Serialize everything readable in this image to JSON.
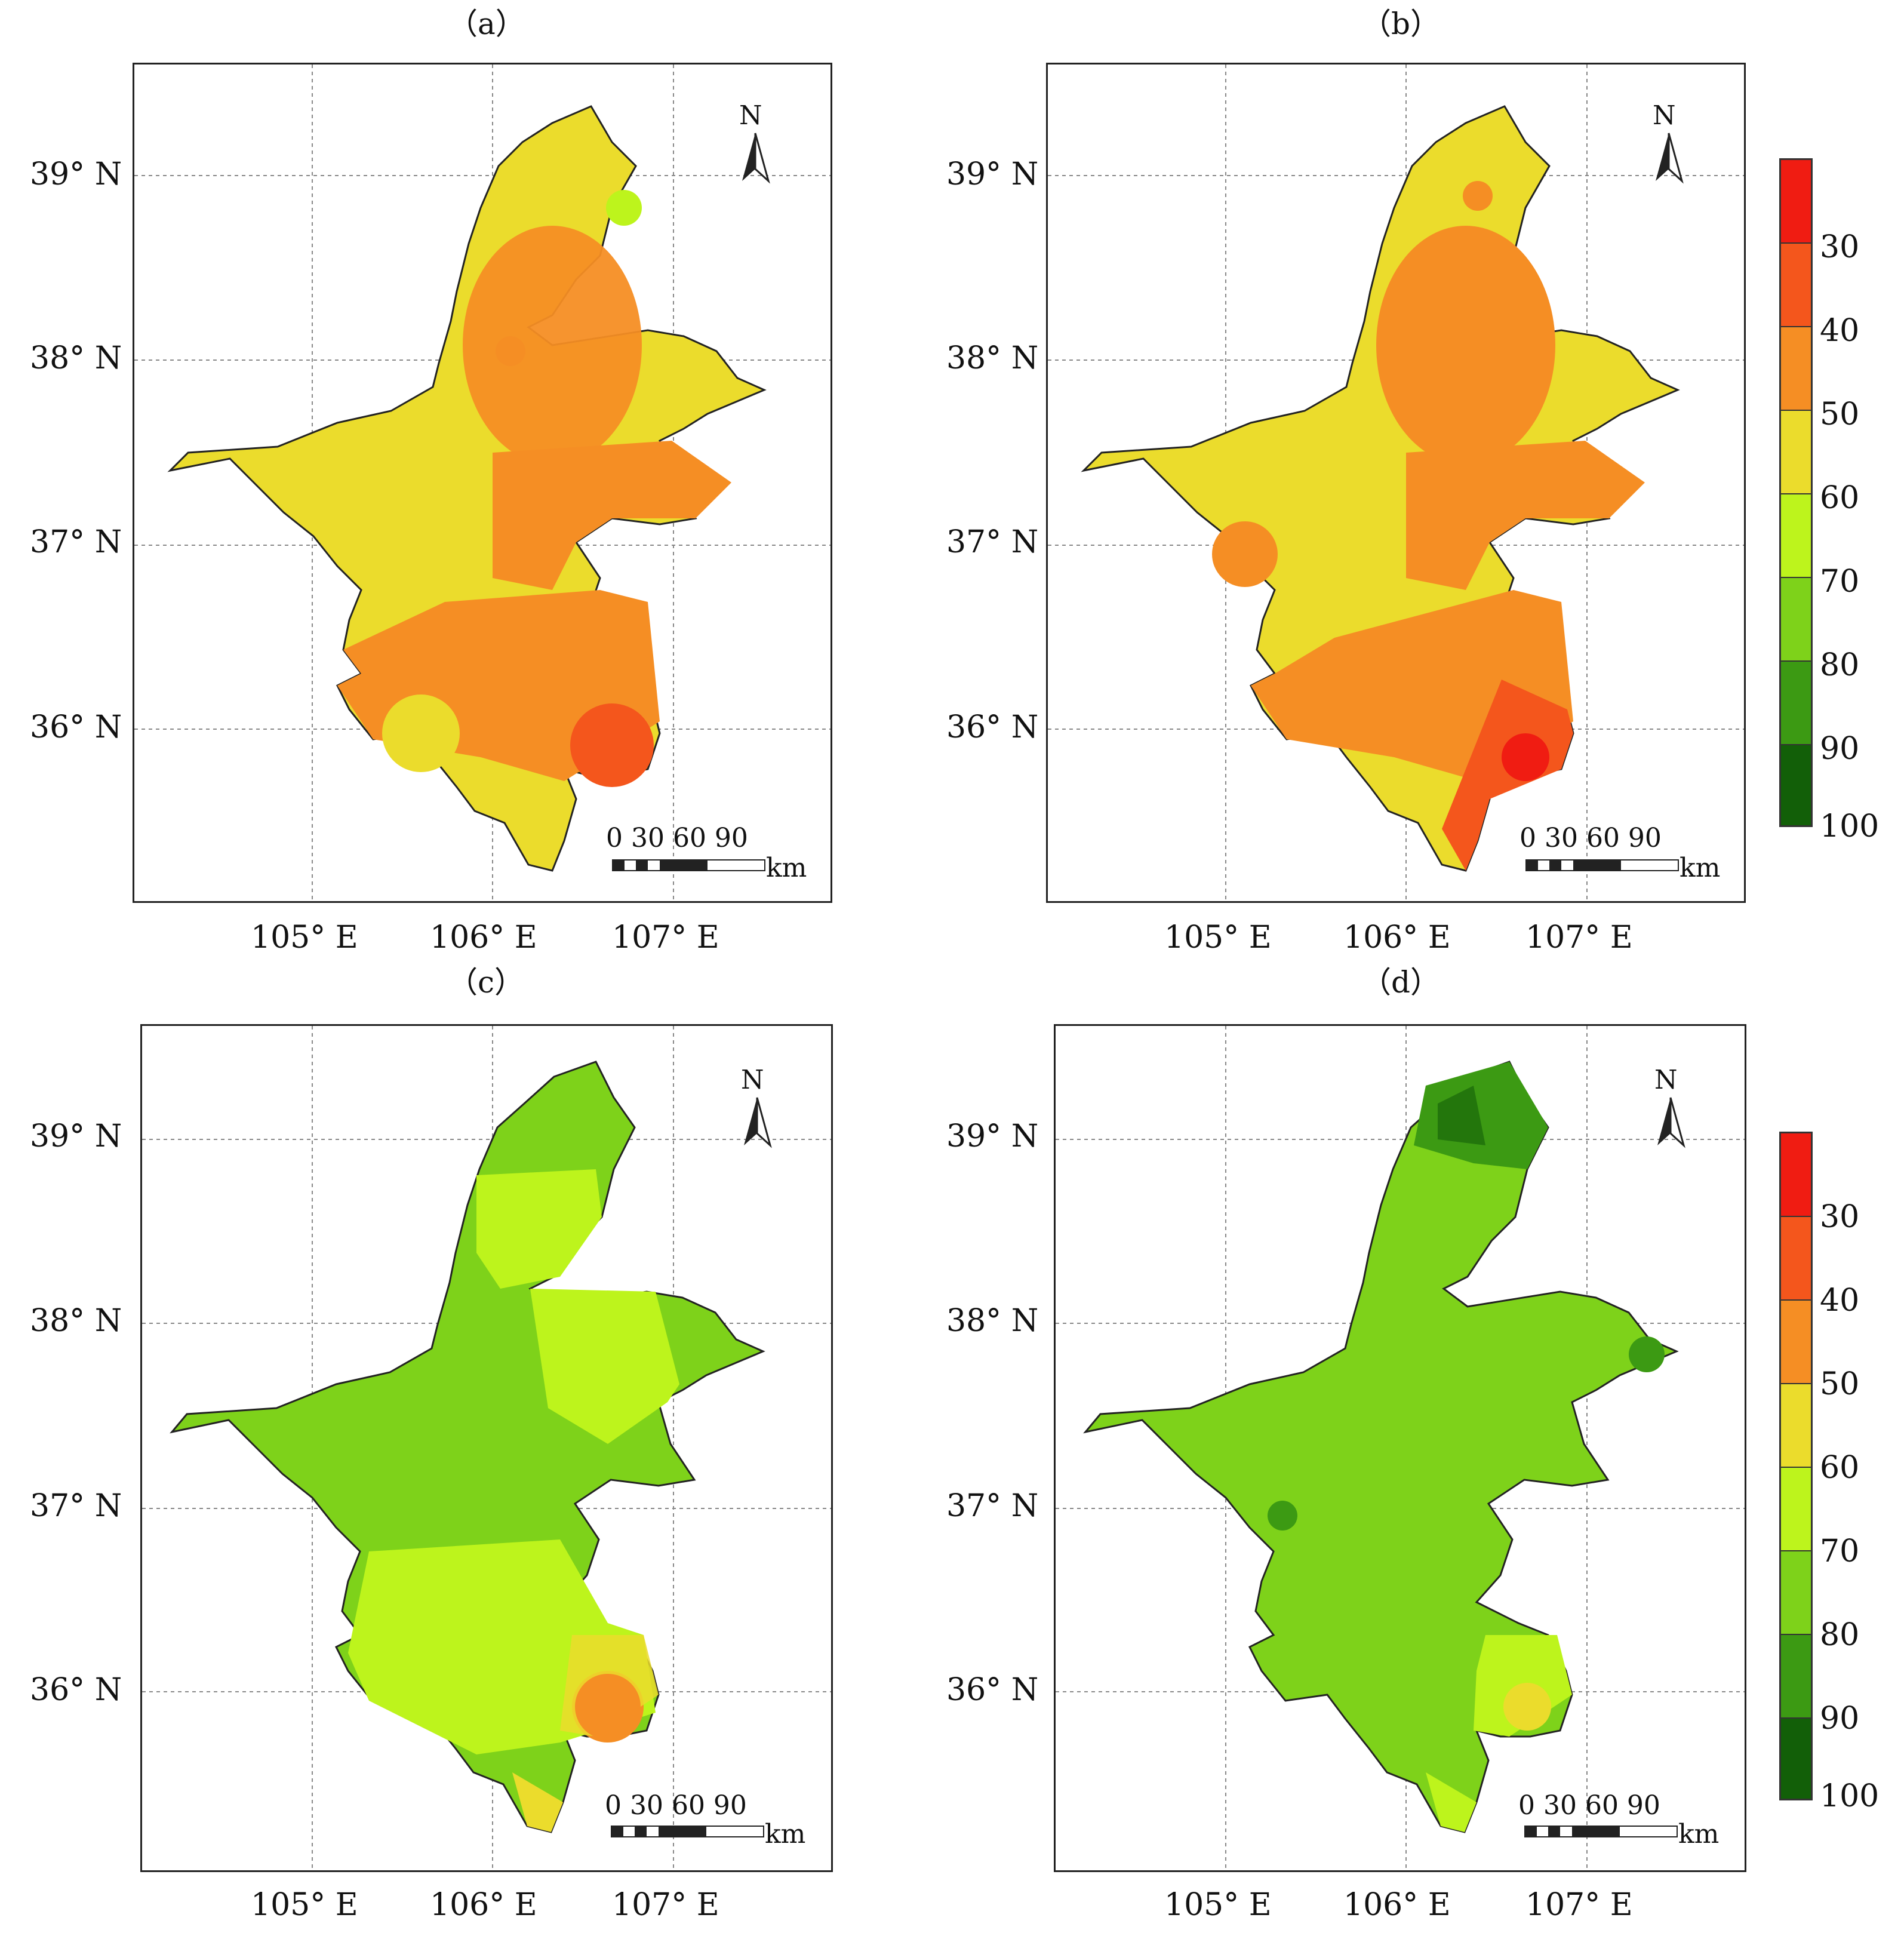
{
  "panels": [
    {
      "label": "（a）",
      "north": "N",
      "scale_ticks": "0  30  60  90",
      "scale_unit": "km"
    },
    {
      "label": "（b）",
      "north": "N",
      "scale_ticks": "0  30  60  90",
      "scale_unit": "km"
    },
    {
      "label": "（c）",
      "north": "N",
      "scale_ticks": "0  30  60  90",
      "scale_unit": "km"
    },
    {
      "label": "（d）",
      "north": "N",
      "scale_ticks": "0  30  60  90",
      "scale_unit": "km"
    }
  ],
  "axes": {
    "latitudes": [
      "39° N",
      "38° N",
      "37° N",
      "36° N"
    ],
    "longitudes": [
      "105° E",
      "106° E",
      "107° E"
    ],
    "lat_values": [
      39,
      38,
      37,
      36
    ],
    "lon_values": [
      105,
      106,
      107
    ]
  },
  "legend": {
    "ticks": [
      "30",
      "40",
      "50",
      "60",
      "70",
      "80",
      "90",
      "100"
    ],
    "colors": [
      "#f01c12",
      "#f4561c",
      "#f58e24",
      "#ebdc2c",
      "#bdf41c",
      "#7ed21a",
      "#3c9a13",
      "#125f08"
    ]
  },
  "fill_colors": {
    "a": "#ebdc2c",
    "b": "#ebdc2c",
    "c": "#7ed21a",
    "d": "#7ed21a",
    "orange": "#f58e24",
    "red_orange": "#f4561c",
    "yellow": "#ebdc2c",
    "light_green": "#bdf41c",
    "green": "#7ed21a",
    "dark_green": "#3c9a13"
  }
}
